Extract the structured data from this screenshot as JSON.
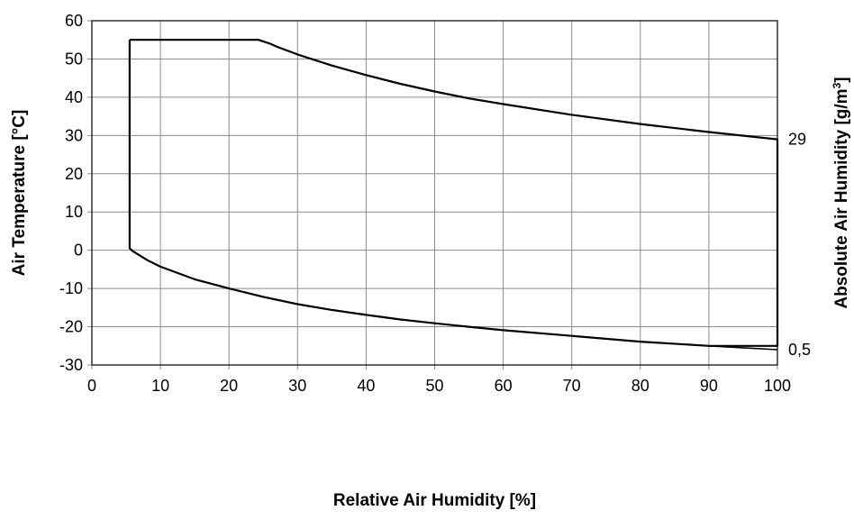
{
  "chart_data": {
    "type": "line",
    "xlabel": "Relative Air Humidity [%]",
    "ylabel": "Air Temperature [°C]",
    "y2label_main": "Absolute Air  Humidity [g/m",
    "y2label_sup": "3",
    "y2label_end": "]",
    "xlim": [
      0,
      100
    ],
    "ylim": [
      -30,
      60
    ],
    "x_ticks": [
      0,
      10,
      20,
      30,
      40,
      50,
      60,
      70,
      80,
      90,
      100
    ],
    "y_ticks": [
      -30,
      -20,
      -10,
      0,
      10,
      20,
      30,
      40,
      50,
      60
    ],
    "x_tick_labels": [
      "0",
      "10",
      "20",
      "30",
      "40",
      "50",
      "60",
      "70",
      "80",
      "90",
      "100"
    ],
    "y_tick_labels": [
      "-30",
      "-20",
      "-10",
      "0",
      "10",
      "20",
      "30",
      "40",
      "50",
      "60"
    ],
    "grid": true,
    "right_axis_values": [
      {
        "label": "29",
        "y": 29
      },
      {
        "label": "0,5",
        "y": -26
      }
    ],
    "colors": {
      "line": "#000000",
      "grid": "#8c8c8c",
      "frame": "#000000"
    },
    "series": [
      {
        "points": [
          [
            5.5,
            55
          ],
          [
            24.3,
            55
          ],
          [
            26,
            54
          ],
          [
            27,
            53.2
          ],
          [
            30,
            51.2
          ],
          [
            35,
            48.3
          ],
          [
            40,
            45.8
          ],
          [
            45,
            43.5
          ],
          [
            50,
            41.5
          ],
          [
            55,
            39.7
          ],
          [
            60,
            38.2
          ],
          [
            70,
            35.4
          ],
          [
            80,
            33
          ],
          [
            90,
            30.9
          ],
          [
            100,
            29
          ],
          [
            100,
            -25
          ],
          [
            90,
            -25
          ],
          [
            80,
            -23.9
          ],
          [
            70,
            -22.4
          ],
          [
            60,
            -20.9
          ],
          [
            55,
            -20
          ],
          [
            50,
            -19.1
          ],
          [
            45,
            -18.1
          ],
          [
            40,
            -16.9
          ],
          [
            35,
            -15.6
          ],
          [
            30,
            -14.1
          ],
          [
            25,
            -12.2
          ],
          [
            20,
            -10
          ],
          [
            15,
            -7.6
          ],
          [
            10,
            -4.3
          ],
          [
            8,
            -2.5
          ],
          [
            7,
            -1.4
          ],
          [
            6,
            -0.3
          ],
          [
            5.5,
            0.5
          ],
          [
            5.5,
            55
          ]
        ]
      },
      {
        "points": [
          [
            90,
            -25
          ],
          [
            95,
            -25.5
          ],
          [
            100,
            -26
          ]
        ]
      }
    ]
  }
}
